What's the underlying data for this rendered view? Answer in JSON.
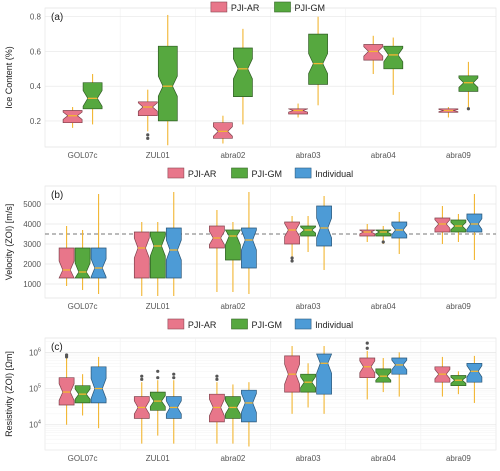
{
  "chart_data": [
    {
      "type": "box",
      "panel_label": "(a)",
      "ylabel": "Ice Content (%)",
      "yscale": "linear",
      "ylim": [
        0.05,
        0.85
      ],
      "yticks": [
        0.2,
        0.4,
        0.6,
        0.8
      ],
      "ytick_labels": [
        "0.2",
        "0.4",
        "0.6",
        "0.8"
      ],
      "categories": [
        "GOL07c",
        "ZUL01",
        "abra02",
        "abra03",
        "abra04",
        "abra09"
      ],
      "legend": {
        "position": "top",
        "entries": [
          "PJI-AR",
          "PJI-GM"
        ]
      },
      "series": [
        {
          "name": "PJI-AR",
          "color": "#e8768a",
          "boxes": [
            {
              "min": 0.16,
              "q1": 0.19,
              "median": 0.23,
              "q3": 0.26,
              "max": 0.28,
              "outliers": []
            },
            {
              "min": 0.14,
              "q1": 0.23,
              "median": 0.28,
              "q3": 0.31,
              "max": 0.38,
              "outliers": [
                0.1,
                0.12
              ]
            },
            {
              "min": 0.07,
              "q1": 0.1,
              "median": 0.14,
              "q3": 0.19,
              "max": 0.23,
              "outliers": []
            },
            {
              "min": 0.22,
              "q1": 0.24,
              "median": 0.26,
              "q3": 0.27,
              "max": 0.3,
              "outliers": []
            },
            {
              "min": 0.47,
              "q1": 0.55,
              "median": 0.6,
              "q3": 0.64,
              "max": 0.69,
              "outliers": []
            },
            {
              "min": 0.22,
              "q1": 0.25,
              "median": 0.26,
              "q3": 0.27,
              "max": 0.28,
              "outliers": []
            }
          ]
        },
        {
          "name": "PJI-GM",
          "color": "#56a83f",
          "boxes": [
            {
              "min": 0.18,
              "q1": 0.27,
              "median": 0.33,
              "q3": 0.42,
              "max": 0.47,
              "outliers": []
            },
            {
              "min": 0.06,
              "q1": 0.2,
              "median": 0.4,
              "q3": 0.63,
              "max": 0.81,
              "outliers": []
            },
            {
              "min": 0.18,
              "q1": 0.34,
              "median": 0.5,
              "q3": 0.62,
              "max": 0.73,
              "outliers": []
            },
            {
              "min": 0.29,
              "q1": 0.41,
              "median": 0.53,
              "q3": 0.7,
              "max": 0.8,
              "outliers": []
            },
            {
              "min": 0.35,
              "q1": 0.5,
              "median": 0.58,
              "q3": 0.63,
              "max": 0.68,
              "outliers": []
            },
            {
              "min": 0.27,
              "q1": 0.37,
              "median": 0.42,
              "q3": 0.46,
              "max": 0.54,
              "outliers": [
                0.27
              ]
            }
          ]
        }
      ]
    },
    {
      "type": "box",
      "panel_label": "(b)",
      "ylabel": "Velocity (ZOI) [m/s]",
      "yscale": "linear",
      "ylim": [
        300,
        5900
      ],
      "yticks": [
        1000,
        2000,
        3000,
        4000,
        5000
      ],
      "ytick_labels": [
        "1000",
        "2000",
        "3000",
        "4000",
        "5000"
      ],
      "reference_line": {
        "y": 3500,
        "style": "dashed"
      },
      "categories": [
        "GOL07c",
        "ZUL01",
        "abra02",
        "abra03",
        "abra04",
        "abra09"
      ],
      "legend": {
        "position": "top",
        "entries": [
          "PJI-AR",
          "PJI-GM",
          "Individual"
        ]
      },
      "series": [
        {
          "name": "PJI-AR",
          "color": "#e8768a",
          "boxes": [
            {
              "min": 900,
              "q1": 1300,
              "median": 1700,
              "q3": 2800,
              "max": 3900,
              "outliers": []
            },
            {
              "min": 400,
              "q1": 1300,
              "median": 2800,
              "q3": 3600,
              "max": 4100,
              "outliers": []
            },
            {
              "min": 600,
              "q1": 2800,
              "median": 3300,
              "q3": 3900,
              "max": 4700,
              "outliers": []
            },
            {
              "min": 2100,
              "q1": 3000,
              "median": 3700,
              "q3": 4100,
              "max": 4400,
              "outliers": [
                2150,
                2300
              ]
            },
            {
              "min": 3100,
              "q1": 3400,
              "median": 3600,
              "q3": 3700,
              "max": 4000,
              "outliers": []
            },
            {
              "min": 3000,
              "q1": 3600,
              "median": 4000,
              "q3": 4300,
              "max": 4900,
              "outliers": []
            }
          ]
        },
        {
          "name": "PJI-GM",
          "color": "#56a83f",
          "boxes": [
            {
              "min": 700,
              "q1": 1300,
              "median": 1600,
              "q3": 2800,
              "max": 3700,
              "outliers": []
            },
            {
              "min": 400,
              "q1": 1300,
              "median": 2900,
              "q3": 3600,
              "max": 4100,
              "outliers": []
            },
            {
              "min": 600,
              "q1": 2200,
              "median": 3400,
              "q3": 3700,
              "max": 4100,
              "outliers": []
            },
            {
              "min": 2600,
              "q1": 3400,
              "median": 3700,
              "q3": 3900,
              "max": 4400,
              "outliers": []
            },
            {
              "min": 3000,
              "q1": 3400,
              "median": 3600,
              "q3": 3700,
              "max": 3900,
              "outliers": [
                3100
              ]
            },
            {
              "min": 3100,
              "q1": 3600,
              "median": 3900,
              "q3": 4200,
              "max": 4500,
              "outliers": []
            }
          ]
        },
        {
          "name": "Individual",
          "color": "#4d9bd6",
          "boxes": [
            {
              "min": 500,
              "q1": 1300,
              "median": 1800,
              "q3": 2800,
              "max": 5500,
              "outliers": []
            },
            {
              "min": 400,
              "q1": 1300,
              "median": 2700,
              "q3": 3800,
              "max": 5600,
              "outliers": []
            },
            {
              "min": 500,
              "q1": 1800,
              "median": 3200,
              "q3": 3800,
              "max": 5600,
              "outliers": []
            },
            {
              "min": 1700,
              "q1": 2900,
              "median": 3800,
              "q3": 4900,
              "max": 5400,
              "outliers": []
            },
            {
              "min": 2500,
              "q1": 3300,
              "median": 3700,
              "q3": 4100,
              "max": 4600,
              "outliers": []
            },
            {
              "min": 2200,
              "q1": 3600,
              "median": 4000,
              "q3": 4500,
              "max": 5500,
              "outliers": []
            }
          ]
        }
      ]
    },
    {
      "type": "box",
      "panel_label": "(c)",
      "ylabel": "Resistivity (ZOI) [Ωm]",
      "yscale": "log",
      "ylim": [
        2000,
        2500000
      ],
      "yticks": [
        10000,
        100000,
        1000000
      ],
      "ytick_labels": [
        "10^4",
        "10^5",
        "10^6"
      ],
      "categories": [
        "GOL07c",
        "ZUL01",
        "abra02",
        "abra03",
        "abra04",
        "abra09"
      ],
      "legend": {
        "position": "top",
        "entries": [
          "PJI-AR",
          "PJI-GM",
          "Individual"
        ]
      },
      "series": [
        {
          "name": "PJI-AR",
          "color": "#e8768a",
          "boxes": [
            {
              "min": 10000,
              "q1": 35000,
              "median": 80000,
              "q3": 200000,
              "max": 700000,
              "outliers": [
                750000,
                850000
              ]
            },
            {
              "min": 3000,
              "q1": 15000,
              "median": 30000,
              "q3": 60000,
              "max": 150000,
              "outliers": [
                180000,
                220000
              ]
            },
            {
              "min": 3000,
              "q1": 12000,
              "median": 30000,
              "q3": 70000,
              "max": 150000,
              "outliers": [
                180000,
                220000
              ]
            },
            {
              "min": 20000,
              "q1": 80000,
              "median": 250000,
              "q3": 800000,
              "max": 1500000,
              "outliers": []
            },
            {
              "min": 50000,
              "q1": 200000,
              "median": 400000,
              "q3": 700000,
              "max": 1100000,
              "outliers": [
                1300000,
                1800000
              ]
            },
            {
              "min": 60000,
              "q1": 150000,
              "median": 250000,
              "q3": 400000,
              "max": 750000,
              "outliers": []
            }
          ]
        },
        {
          "name": "PJI-GM",
          "color": "#56a83f",
          "boxes": [
            {
              "min": 18000,
              "q1": 40000,
              "median": 70000,
              "q3": 120000,
              "max": 250000,
              "outliers": []
            },
            {
              "min": 5000,
              "q1": 25000,
              "median": 45000,
              "q3": 80000,
              "max": 170000,
              "outliers": [
                200000,
                300000
              ]
            },
            {
              "min": 3000,
              "q1": 15000,
              "median": 30000,
              "q3": 60000,
              "max": 130000,
              "outliers": []
            },
            {
              "min": 30000,
              "q1": 80000,
              "median": 150000,
              "q3": 250000,
              "max": 500000,
              "outliers": []
            },
            {
              "min": 80000,
              "q1": 150000,
              "median": 220000,
              "q3": 350000,
              "max": 700000,
              "outliers": []
            },
            {
              "min": 70000,
              "q1": 120000,
              "median": 170000,
              "q3": 230000,
              "max": 300000,
              "outliers": []
            }
          ]
        },
        {
          "name": "Individual",
          "color": "#4d9bd6",
          "boxes": [
            {
              "min": 8000,
              "q1": 40000,
              "median": 100000,
              "q3": 400000,
              "max": 750000,
              "outliers": []
            },
            {
              "min": 3000,
              "q1": 15000,
              "median": 30000,
              "q3": 60000,
              "max": 170000,
              "outliers": [
                200000,
                250000
              ]
            },
            {
              "min": 2500,
              "q1": 12000,
              "median": 40000,
              "q3": 90000,
              "max": 150000,
              "outliers": []
            },
            {
              "min": 20000,
              "q1": 70000,
              "median": 500000,
              "q3": 900000,
              "max": 1500000,
              "outliers": []
            },
            {
              "min": 60000,
              "q1": 250000,
              "median": 450000,
              "q3": 700000,
              "max": 1000000,
              "outliers": []
            },
            {
              "min": 40000,
              "q1": 150000,
              "median": 300000,
              "q3": 500000,
              "max": 800000,
              "outliers": []
            }
          ]
        }
      ]
    }
  ]
}
